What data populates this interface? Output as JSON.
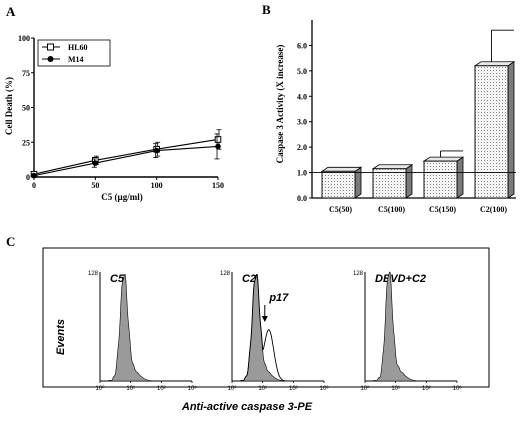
{
  "chart_data": [
    {
      "panel": "A",
      "type": "line",
      "xlabel": "C5 (µg/ml)",
      "ylabel": "Cell Death (%)",
      "xlim": [
        0,
        150
      ],
      "ylim": [
        0,
        100
      ],
      "xticks": [
        "0",
        "50",
        "100",
        "150"
      ],
      "yticks": [
        "0",
        "25",
        "50",
        "75",
        "100"
      ],
      "legend_position": "top-left",
      "x": [
        0,
        50,
        100,
        150
      ],
      "series": [
        {
          "name": "HL60",
          "marker": "open-square",
          "values": [
            2,
            12,
            20,
            27
          ],
          "errors": [
            1,
            3,
            5,
            7
          ]
        },
        {
          "name": "M14",
          "marker": "filled-circle",
          "values": [
            1,
            10,
            19,
            22
          ],
          "errors": [
            1,
            3,
            5,
            9
          ]
        }
      ]
    },
    {
      "panel": "B",
      "type": "bar",
      "ylabel": "Caspase 3 Activity (X increase)",
      "ylim": [
        0,
        7
      ],
      "yticks": [
        "0.0",
        "1.0",
        "2.0",
        "3.0",
        "4.0",
        "5.0",
        "6.0"
      ],
      "categories": [
        "C5(50)",
        "C5(100)",
        "C5(150)",
        "C2(100)"
      ],
      "values": [
        1.05,
        1.15,
        1.45,
        5.2
      ],
      "errors": [
        0.1,
        0.15,
        0.4,
        1.4
      ],
      "reference_line": 1.0
    },
    {
      "panel": "C",
      "type": "area",
      "xlabel": "Anti-active caspase 3-PE",
      "ylabel": "Events",
      "ymax_label": "128",
      "x_scale": "log",
      "xlim": [
        1,
        1000
      ],
      "xticks": [
        "10⁰",
        "10¹",
        "10²",
        "10³"
      ],
      "histograms": [
        {
          "title": "C5",
          "annotation": ""
        },
        {
          "title": "C2",
          "annotation": "p17"
        },
        {
          "title": "DEVD+C2",
          "annotation": ""
        }
      ]
    }
  ],
  "colors": {
    "ink": "#000000",
    "bar_fill": "#e8e8e8",
    "hist_fill": "#9a9a9a",
    "bar_side": "#7a7a7a"
  }
}
